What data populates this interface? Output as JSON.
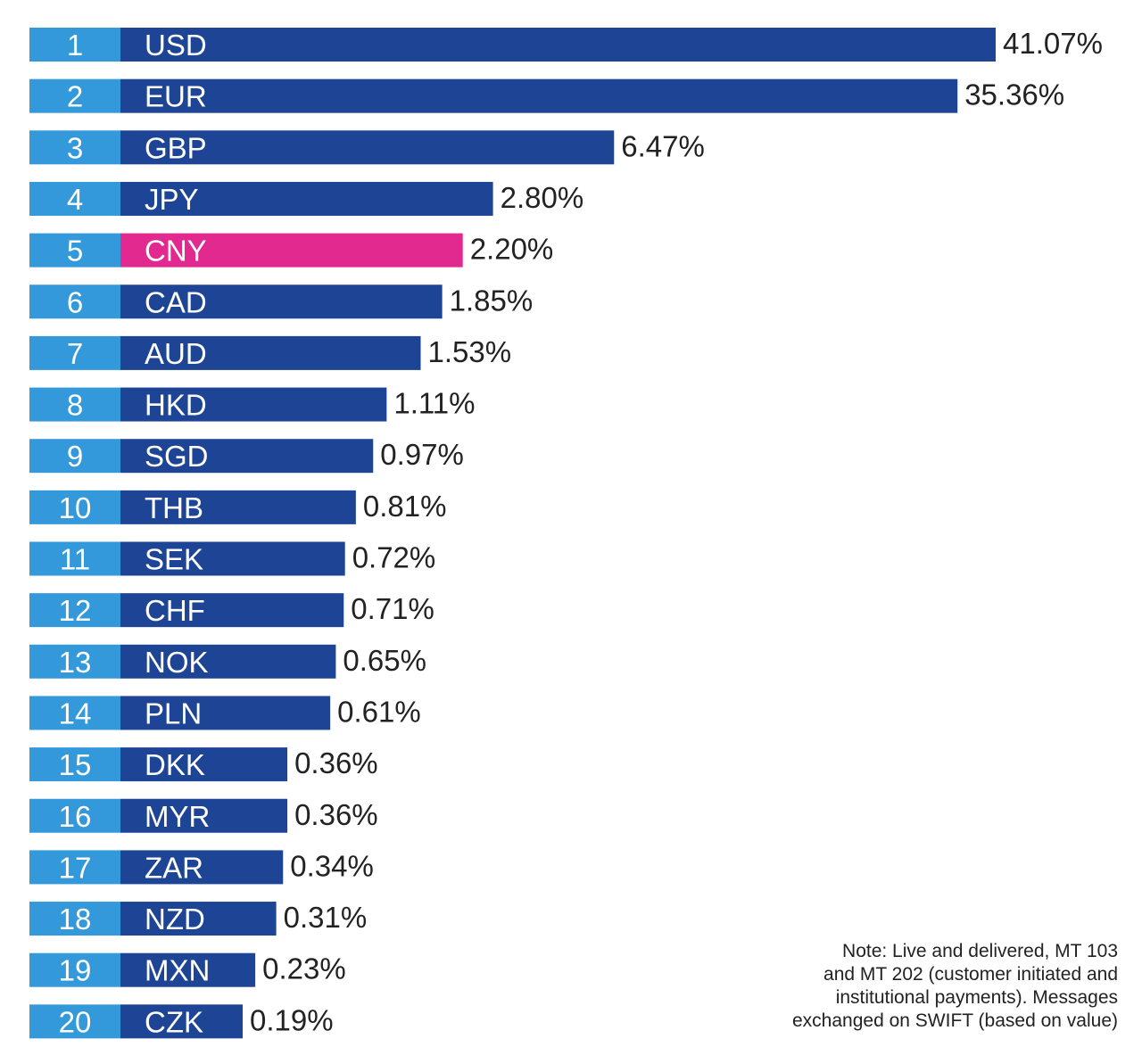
{
  "colors": {
    "rank_bg": "#3399db",
    "bar": "#1e4595",
    "highlight": "#e2298f",
    "text_dark": "#222222",
    "text_light": "#ffffff"
  },
  "chart_data": {
    "type": "bar",
    "orientation": "horizontal",
    "title": "",
    "xlabel": "",
    "ylabel": "",
    "value_unit": "%",
    "xlim": [
      0,
      41.07
    ],
    "grid": false,
    "highlighted_category": "CNY",
    "scale_note": "bar lengths are not linear with value",
    "items": [
      {
        "rank": "1",
        "code": "USD",
        "value": 41.07,
        "label": "41.07%",
        "highlight": false
      },
      {
        "rank": "2",
        "code": "EUR",
        "value": 35.36,
        "label": "35.36%",
        "highlight": false
      },
      {
        "rank": "3",
        "code": "GBP",
        "value": 6.47,
        "label": "6.47%",
        "highlight": false
      },
      {
        "rank": "4",
        "code": "JPY",
        "value": 2.8,
        "label": "2.80%",
        "highlight": false
      },
      {
        "rank": "5",
        "code": "CNY",
        "value": 2.2,
        "label": "2.20%",
        "highlight": true
      },
      {
        "rank": "6",
        "code": "CAD",
        "value": 1.85,
        "label": "1.85%",
        "highlight": false
      },
      {
        "rank": "7",
        "code": "AUD",
        "value": 1.53,
        "label": "1.53%",
        "highlight": false
      },
      {
        "rank": "8",
        "code": "HKD",
        "value": 1.11,
        "label": "1.11%",
        "highlight": false
      },
      {
        "rank": "9",
        "code": "SGD",
        "value": 0.97,
        "label": "0.97%",
        "highlight": false
      },
      {
        "rank": "10",
        "code": "THB",
        "value": 0.81,
        "label": "0.81%",
        "highlight": false
      },
      {
        "rank": "11",
        "code": "SEK",
        "value": 0.72,
        "label": "0.72%",
        "highlight": false
      },
      {
        "rank": "12",
        "code": "CHF",
        "value": 0.71,
        "label": "0.71%",
        "highlight": false
      },
      {
        "rank": "13",
        "code": "NOK",
        "value": 0.65,
        "label": "0.65%",
        "highlight": false
      },
      {
        "rank": "14",
        "code": "PLN",
        "value": 0.61,
        "label": "0.61%",
        "highlight": false
      },
      {
        "rank": "15",
        "code": "DKK",
        "value": 0.36,
        "label": "0.36%",
        "highlight": false
      },
      {
        "rank": "16",
        "code": "MYR",
        "value": 0.36,
        "label": "0.36%",
        "highlight": false
      },
      {
        "rank": "17",
        "code": "ZAR",
        "value": 0.34,
        "label": "0.34%",
        "highlight": false
      },
      {
        "rank": "18",
        "code": "NZD",
        "value": 0.31,
        "label": "0.31%",
        "highlight": false
      },
      {
        "rank": "19",
        "code": "MXN",
        "value": 0.23,
        "label": "0.23%",
        "highlight": false
      },
      {
        "rank": "20",
        "code": "CZK",
        "value": 0.19,
        "label": "0.19%",
        "highlight": false
      }
    ]
  },
  "note": {
    "lines": [
      "Note: Live and delivered, MT 103",
      "and MT 202 (customer initiated and",
      "institutional payments). Messages",
      "exchanged on SWIFT (based on value)"
    ]
  }
}
